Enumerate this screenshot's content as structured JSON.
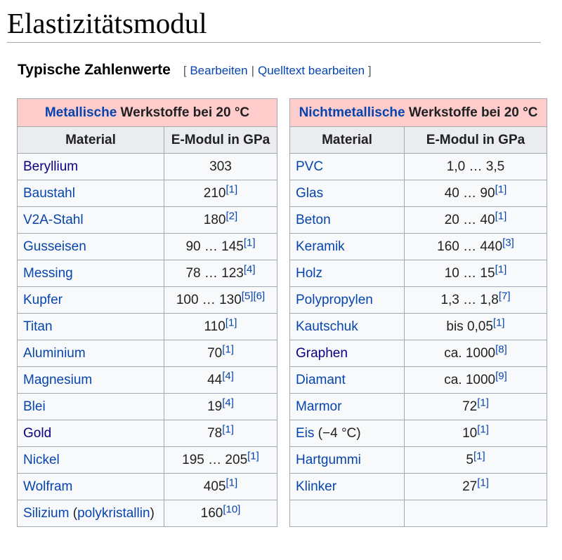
{
  "page": {
    "title": "Elastizitätsmodul"
  },
  "section": {
    "title": "Typische Zahlenwerte",
    "bracket_open": "[",
    "edit_label": "Bearbeiten",
    "separator": "|",
    "edit_source_label": "Quelltext bearbeiten",
    "bracket_close": "]"
  },
  "tables": [
    {
      "caption_link": "Metallische",
      "caption_rest": " Werkstoffe bei 20 °C",
      "headers": [
        "Material",
        "E-Modul in GPa"
      ],
      "rows": [
        {
          "material": "Beryllium",
          "visited": true,
          "value": "303",
          "refs": []
        },
        {
          "material": "Baustahl",
          "value": "210",
          "refs": [
            "[1]"
          ]
        },
        {
          "material": "V2A-Stahl",
          "value": "180",
          "refs": [
            "[2]"
          ]
        },
        {
          "material": "Gusseisen",
          "value": "90 … 145",
          "refs": [
            "[1]"
          ]
        },
        {
          "material": "Messing",
          "value": "78 … 123",
          "refs": [
            "[4]"
          ]
        },
        {
          "material": "Kupfer",
          "value": "100 … 130",
          "refs": [
            "[5]",
            "[6]"
          ]
        },
        {
          "material": "Titan",
          "value": "110",
          "refs": [
            "[1]"
          ]
        },
        {
          "material": "Aluminium",
          "value": "70",
          "refs": [
            "[1]"
          ]
        },
        {
          "material": "Magnesium",
          "value": "44",
          "refs": [
            "[4]"
          ]
        },
        {
          "material": "Blei",
          "value": "19",
          "refs": [
            "[4]"
          ]
        },
        {
          "material": "Gold",
          "visited": true,
          "value": "78",
          "refs": [
            "[1]"
          ]
        },
        {
          "material": "Nickel",
          "value": "195 … 205",
          "refs": [
            "[1]"
          ]
        },
        {
          "material": "Wolfram",
          "value": "405",
          "refs": [
            "[1]"
          ]
        },
        {
          "material": "Silizium",
          "material_plain": " (",
          "material_link2": "polykristallin",
          "material_after": ")",
          "value": "160",
          "refs": [
            "[10]"
          ]
        }
      ]
    },
    {
      "caption_link": "Nichtmetallische",
      "caption_rest": " Werkstoffe bei 20 °C",
      "headers": [
        "Material",
        "E-Modul in GPa"
      ],
      "rows": [
        {
          "material": "PVC",
          "value": "1,0 … 3,5",
          "refs": []
        },
        {
          "material": "Glas",
          "value": "40 … 90",
          "refs": [
            "[1]"
          ]
        },
        {
          "material": "Beton",
          "value": "20 … 40",
          "refs": [
            "[1]"
          ]
        },
        {
          "material": "Keramik",
          "value": "160 … 440",
          "refs": [
            "[3]"
          ]
        },
        {
          "material": "Holz",
          "value": "10 … 15",
          "refs": [
            "[1]"
          ]
        },
        {
          "material": "Polypropylen",
          "value": "1,3 … 1,8",
          "refs": [
            "[7]"
          ]
        },
        {
          "material": "Kautschuk",
          "value": "bis 0,05",
          "refs": [
            "[1]"
          ]
        },
        {
          "material": "Graphen",
          "visited": true,
          "value": "ca. 1000",
          "refs": [
            "[8]"
          ]
        },
        {
          "material": "Diamant",
          "value": "ca. 1000",
          "refs": [
            "[9]"
          ]
        },
        {
          "material": "Marmor",
          "value": "72",
          "refs": [
            "[1]"
          ]
        },
        {
          "material": "Eis",
          "material_plain": " (−4 °C)",
          "value": "10",
          "refs": [
            "[1]"
          ]
        },
        {
          "material": "Hartgummi",
          "value": "5",
          "refs": [
            "[1]"
          ]
        },
        {
          "material": "Klinker",
          "value": "27",
          "refs": [
            "[1]"
          ]
        },
        {
          "material": "",
          "value": "",
          "refs": []
        }
      ]
    }
  ]
}
